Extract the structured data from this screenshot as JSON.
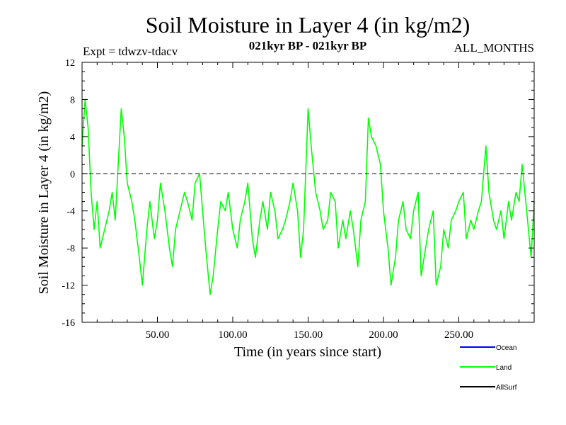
{
  "chart_data": {
    "type": "line",
    "title": "Soil Moisture in Layer 4 (in kg/m2)",
    "subtitle_left": "Expt = tdwzv-tdacv",
    "subtitle_center": "021kyr BP - 021kyr BP",
    "subtitle_right": "ALL_MONTHS",
    "xlabel": "Time (in years since start)",
    "ylabel": "Soil Moisture in Layer 4 (in kg/m2)",
    "xlim": [
      0,
      300
    ],
    "ylim": [
      -16,
      12
    ],
    "x_ticks": [
      50,
      100,
      150,
      200,
      250
    ],
    "x_tick_labels": [
      "50.00",
      "100.00",
      "150.00",
      "200.00",
      "250.00"
    ],
    "y_ticks": [
      -16,
      -12,
      -8,
      -4,
      0,
      4,
      8,
      12
    ],
    "y_tick_labels": [
      "-16",
      "-12",
      "-8",
      "-4",
      "0",
      "4",
      "8",
      "12"
    ],
    "reference_line": 0,
    "grid": false,
    "legend_position": "bottom-right",
    "legend": [
      {
        "name": "Ocean",
        "color": "#0000ff"
      },
      {
        "name": "Land",
        "color": "#00ff00"
      },
      {
        "name": "AllSurf",
        "color": "#000000"
      }
    ],
    "series": [
      {
        "name": "Land",
        "color": "#00ff00",
        "x": [
          0,
          2,
          4,
          6,
          8,
          10,
          12,
          15,
          18,
          20,
          22,
          24,
          26,
          28,
          30,
          33,
          35,
          38,
          40,
          43,
          45,
          48,
          50,
          52,
          55,
          58,
          60,
          62,
          65,
          68,
          70,
          73,
          75,
          78,
          80,
          82,
          85,
          87,
          90,
          92,
          95,
          97,
          100,
          103,
          105,
          108,
          110,
          113,
          115,
          118,
          120,
          123,
          125,
          128,
          130,
          133,
          135,
          138,
          140,
          143,
          145,
          147,
          150,
          152,
          155,
          158,
          160,
          163,
          165,
          168,
          170,
          173,
          175,
          178,
          180,
          183,
          185,
          188,
          190,
          192,
          195,
          198,
          200,
          203,
          205,
          208,
          210,
          213,
          215,
          218,
          220,
          223,
          225,
          228,
          230,
          233,
          235,
          238,
          240,
          243,
          245,
          248,
          250,
          253,
          255,
          258,
          260,
          263,
          265,
          268,
          270,
          273,
          275,
          278,
          280,
          283,
          285,
          288,
          290,
          292,
          295,
          298,
          300
        ],
        "values": [
          3,
          8,
          5,
          -2,
          -6,
          -3,
          -8,
          -6,
          -4,
          -2,
          -5,
          1,
          7,
          4,
          -1,
          -3,
          -5,
          -9,
          -12,
          -6,
          -3,
          -7,
          -5,
          -1,
          -4,
          -8,
          -10,
          -6,
          -4,
          -2,
          -3,
          -5,
          -1,
          0,
          -4,
          -8,
          -13,
          -11,
          -6,
          -3,
          -4,
          -2,
          -6,
          -8,
          -5,
          -3,
          -1,
          -7,
          -9,
          -5,
          -3,
          -6,
          -2,
          -4,
          -7,
          -6,
          -5,
          -3,
          -1,
          -4,
          -9,
          -6,
          7,
          3,
          -2,
          -4,
          -6,
          -5,
          -2,
          -3,
          -8,
          -5,
          -7,
          -4,
          -6,
          -10,
          -5,
          -3,
          6,
          4,
          3,
          1,
          -4,
          -8,
          -12,
          -9,
          -5,
          -3,
          -6,
          -7,
          -4,
          -2,
          -11,
          -8,
          -6,
          -4,
          -12,
          -10,
          -6,
          -8,
          -5,
          -4,
          -3,
          -2,
          -7,
          -5,
          -6,
          -4,
          -3,
          3,
          -2,
          -5,
          -6,
          -4,
          -7,
          -3,
          -5,
          -2,
          -3,
          1,
          -4,
          -9,
          -3
        ]
      },
      {
        "name": "Ocean",
        "color": "#0000ff",
        "x": [],
        "values": []
      },
      {
        "name": "AllSurf",
        "color": "#000000",
        "x": [],
        "values": []
      }
    ]
  }
}
